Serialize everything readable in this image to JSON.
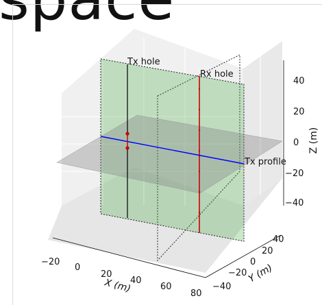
{
  "header": {
    "fragment_text": "space"
  },
  "chart_data": {
    "type": "scatter",
    "title": "",
    "xlabel": "X (m)",
    "ylabel": "Y (m)",
    "zlabel": "Z (m)",
    "x_ticks": [
      "−20",
      "0",
      "20",
      "40",
      "60",
      "80"
    ],
    "y_ticks": [
      "−40",
      "−20",
      "0",
      "20",
      "40"
    ],
    "z_ticks": [
      "−40",
      "−20",
      "0",
      "20",
      "40"
    ],
    "grid": true,
    "annotations": [
      {
        "text": "Tx hole"
      },
      {
        "text": "Rx hole"
      },
      {
        "text": "Tx profile"
      }
    ],
    "series": [
      {
        "label": "Tx hole",
        "color": "#000000",
        "x": 0,
        "y": 0,
        "z_range": [
          -50,
          50
        ]
      },
      {
        "label": "Rx hole",
        "color": "#cc0000",
        "x": 40,
        "y": 0,
        "z_range": [
          -50,
          50
        ]
      },
      {
        "label": "Tx profile",
        "color": "#0000ff",
        "x_range": [
          -20,
          80
        ],
        "y": 0,
        "z": 0
      },
      {
        "label": "Tx points",
        "color": "#cc0000",
        "x": 0,
        "y": 0,
        "z": [
          10,
          0,
          -10
        ]
      }
    ],
    "planes": [
      {
        "label": "vertical plane y=0",
        "color": "#2ca02c",
        "alpha": 0.25
      },
      {
        "label": "horizontal plane z=0",
        "color": "#808080",
        "alpha": 0.35
      },
      {
        "label": "vertical dotted plane",
        "style": "dotted"
      }
    ]
  }
}
